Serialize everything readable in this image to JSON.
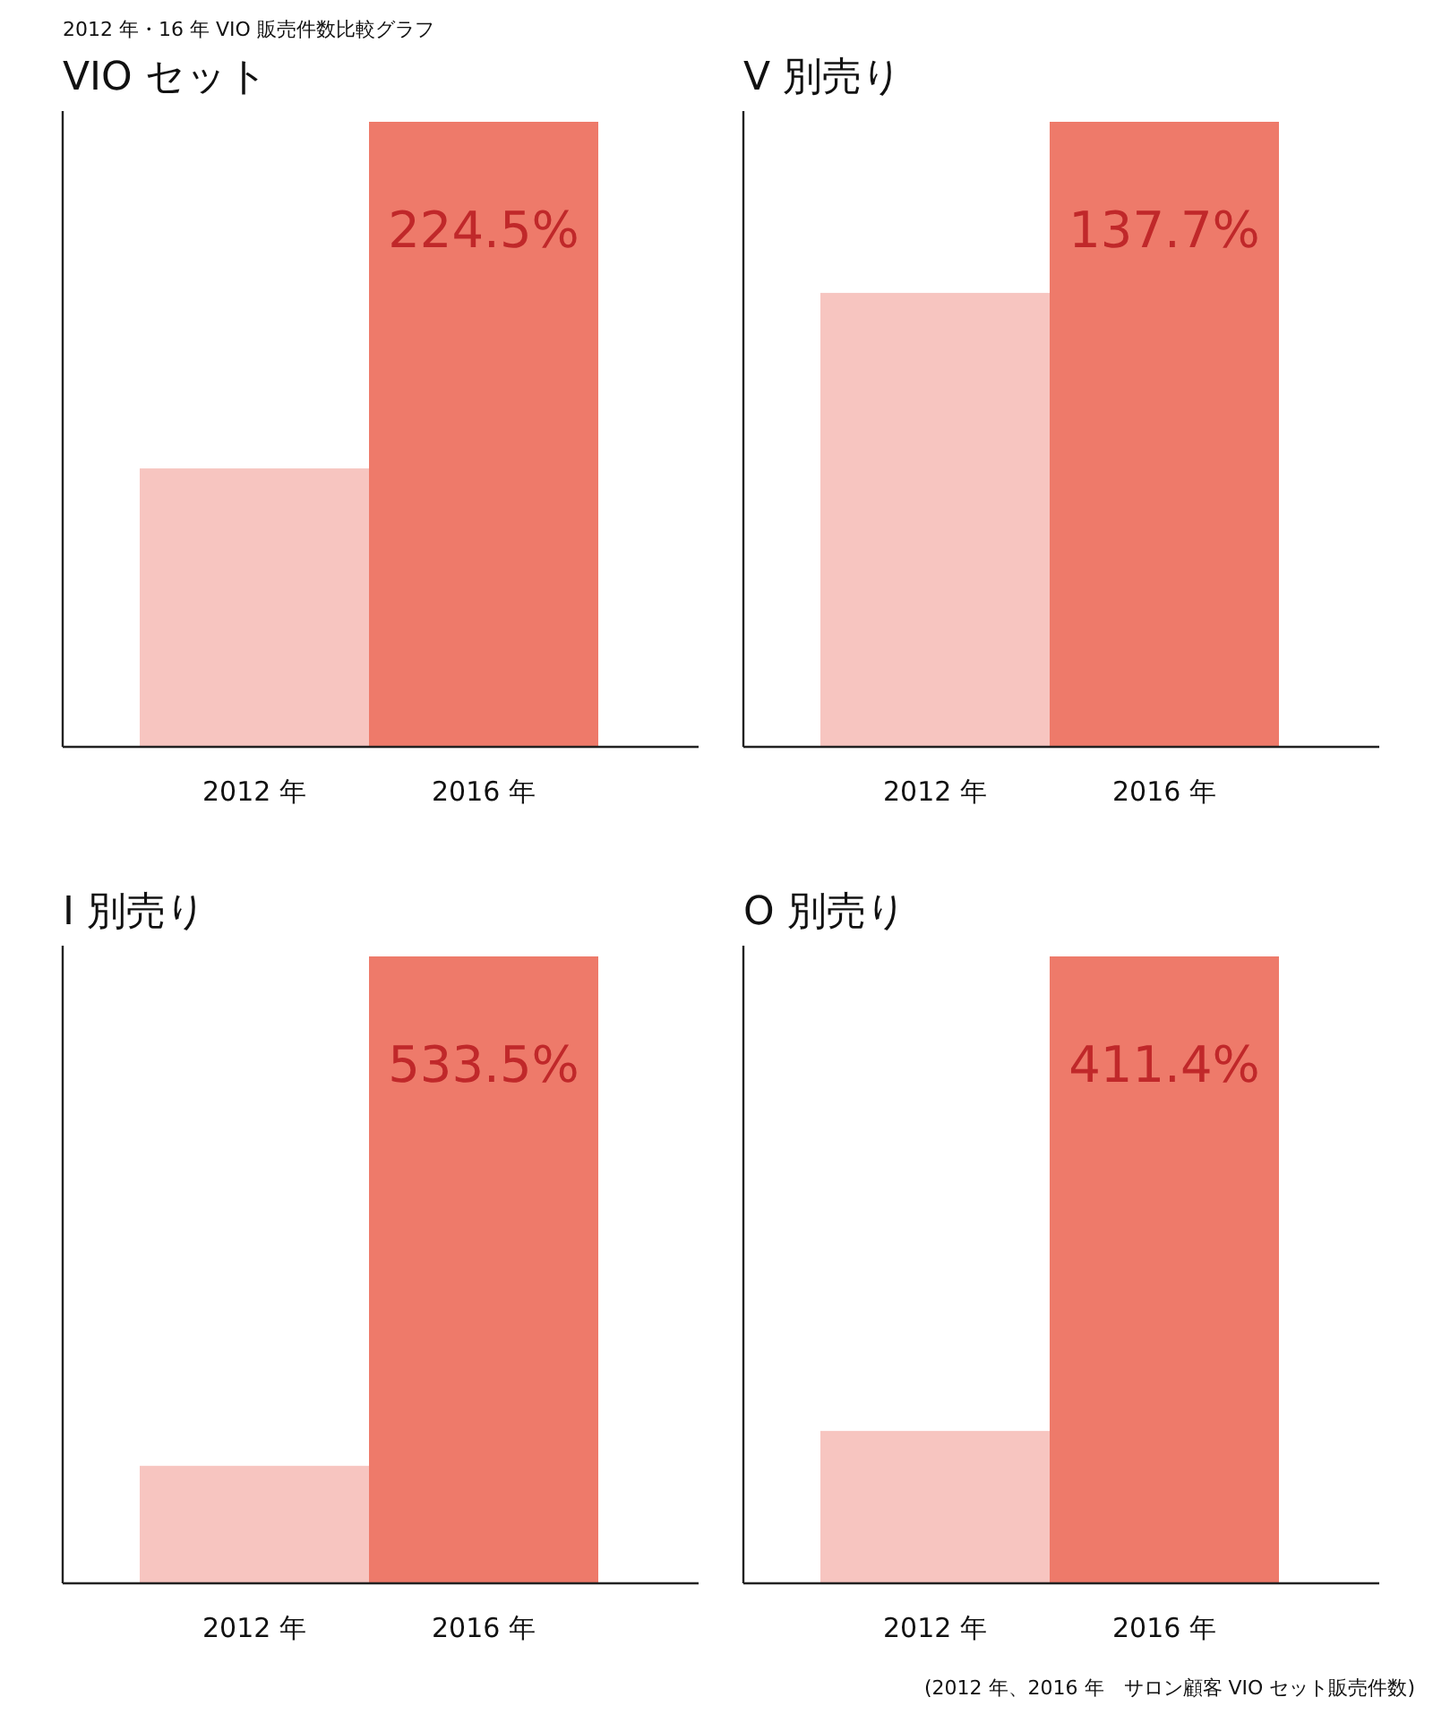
{
  "chart_data": [
    {
      "type": "bar",
      "title": "VIO セット",
      "categories": [
        "2012 年",
        "2016 年"
      ],
      "values": [
        100,
        224.5
      ],
      "colors": [
        "#f7c5c0",
        "#ee7a6a"
      ],
      "value_labels": [
        null,
        "224.5%"
      ],
      "annotations": [
        "2012 年・16 年 VIO 販売件数比較グラフ"
      ]
    },
    {
      "type": "bar",
      "title": "V 別売り",
      "categories": [
        "2012 年",
        "2016 年"
      ],
      "values": [
        100,
        137.7
      ],
      "colors": [
        "#f7c5c0",
        "#ee7a6a"
      ],
      "value_labels": [
        null,
        "137.7%"
      ]
    },
    {
      "type": "bar",
      "title": "I 別売り",
      "categories": [
        "2012 年",
        "2016 年"
      ],
      "values": [
        100,
        533.5
      ],
      "colors": [
        "#f7c5c0",
        "#ee7a6a"
      ],
      "value_labels": [
        null,
        "533.5%"
      ]
    },
    {
      "type": "bar",
      "title": "O 別売り",
      "categories": [
        "2012 年",
        "2016 年"
      ],
      "values": [
        100,
        411.4
      ],
      "colors": [
        "#f7c5c0",
        "#ee7a6a"
      ],
      "value_labels": [
        null,
        "411.4%"
      ],
      "annotations": [
        "(2012 年、2016 年　サロン顧客 VIO セット販売件数)"
      ]
    }
  ]
}
